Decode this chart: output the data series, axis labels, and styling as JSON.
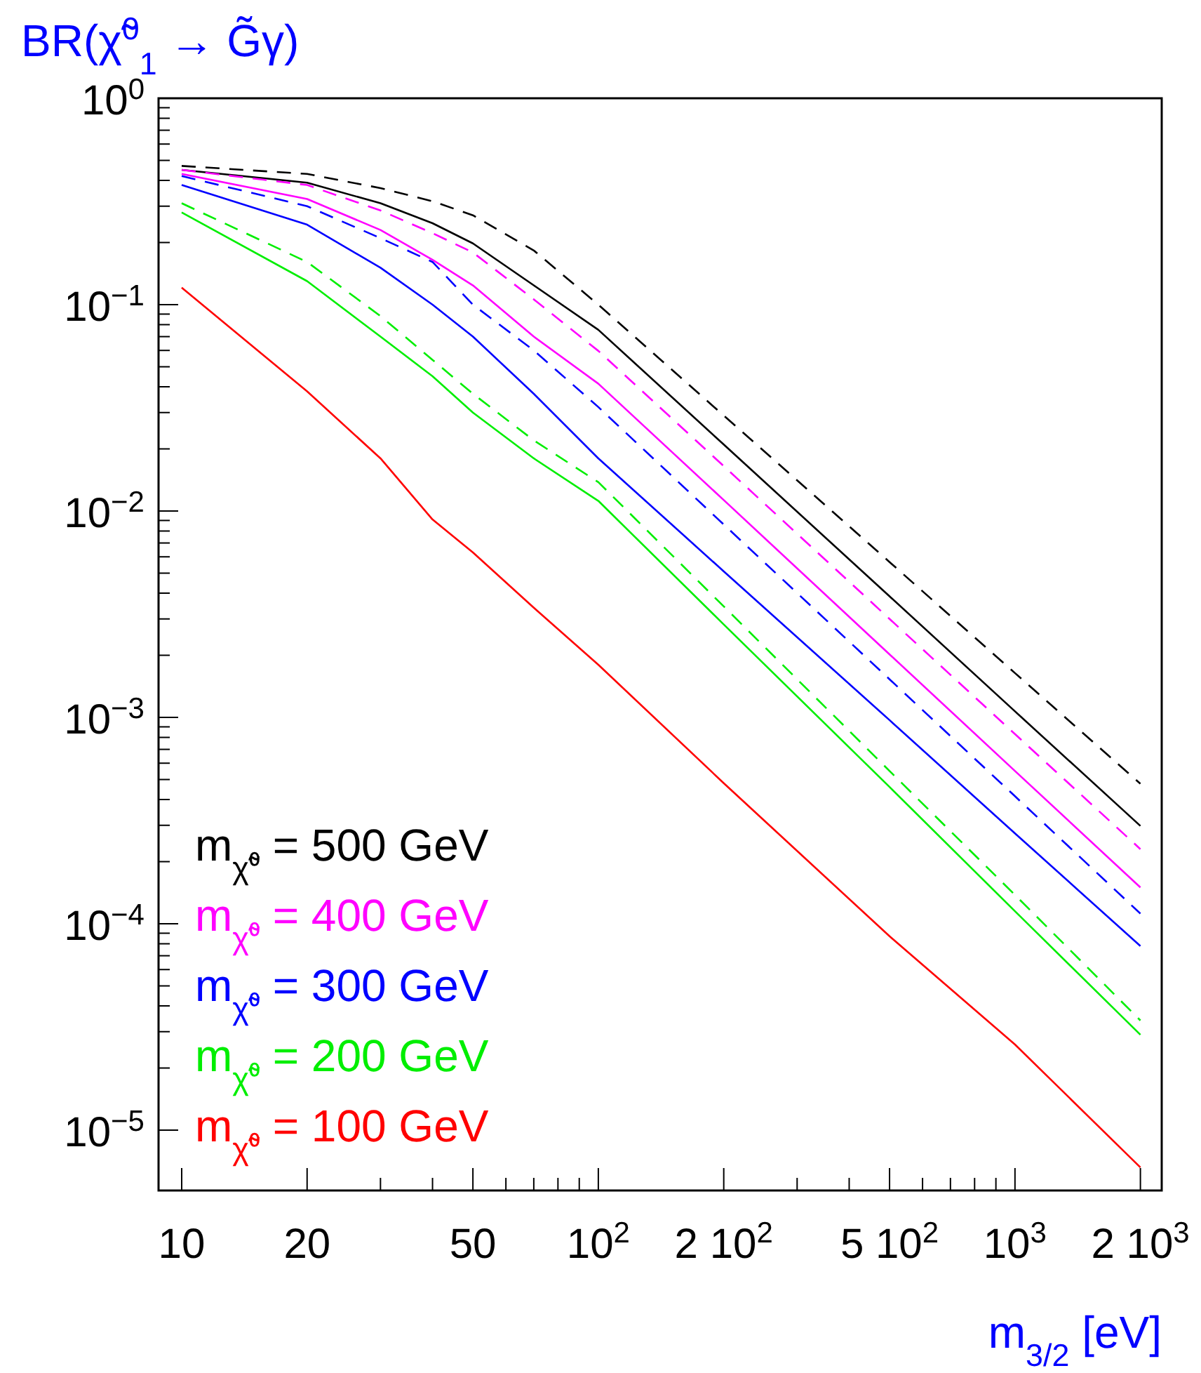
{
  "chart_data": {
    "type": "line",
    "title": "BR(χ̃$^{0}$$_{1}$ → G̃γ)",
    "xlabel": "m$_{3/2}$ [eV]",
    "log": "xy",
    "grid": false,
    "legend": "bottom left",
    "marker": "none",
    "x": [
      10,
      20,
      30,
      40,
      50,
      70,
      100,
      200,
      500,
      1000,
      2000
    ],
    "xlim": [
      8.8,
      2250
    ],
    "ylim": [
      5.1e-06,
      1
    ],
    "xticks": [
      10,
      20,
      {
        "value": 30,
        "label": null
      },
      {
        "value": 40,
        "label": null
      },
      50,
      {
        "value": 60,
        "label": null
      },
      {
        "value": 70,
        "label": null
      },
      {
        "value": 80,
        "label": null
      },
      {
        "value": 90,
        "label": null
      },
      {
        "value": 100,
        "label": "10$^{2}$"
      },
      {
        "value": 200,
        "label": "2 10$^{2}$"
      },
      {
        "value": 300,
        "label": null
      },
      {
        "value": 400,
        "label": null
      },
      {
        "value": 500,
        "label": "5 10$^{2}$"
      },
      {
        "value": 600,
        "label": null
      },
      {
        "value": 700,
        "label": null
      },
      {
        "value": 800,
        "label": null
      },
      {
        "value": 900,
        "label": null
      },
      {
        "value": 1000,
        "label": "10$^{3}$"
      },
      {
        "value": 2000,
        "label": "2 10$^{3}$"
      }
    ],
    "yticks": [
      {
        "value": 1,
        "label": "10$^{0}$"
      },
      {
        "value": 0.1,
        "label": "10$^{−1}$"
      },
      {
        "value": 0.01,
        "label": "10$^{−2}$"
      },
      {
        "value": 0.001,
        "label": "10$^{−3}$"
      },
      {
        "value": 0.0001,
        "label": "10$^{−4}$"
      },
      {
        "value": 1e-05,
        "label": "10$^{−5}$"
      },
      {
        "value": 0.2,
        "label": null
      },
      {
        "value": 0.3,
        "label": null
      },
      {
        "value": 0.4,
        "label": null
      },
      {
        "value": 0.5,
        "label": null
      },
      {
        "value": 0.6,
        "label": null
      },
      {
        "value": 0.7,
        "label": null
      },
      {
        "value": 0.8,
        "label": null
      },
      {
        "value": 0.9,
        "label": null
      },
      {
        "value": 0.02,
        "label": null
      },
      {
        "value": 0.03,
        "label": null
      },
      {
        "value": 0.04,
        "label": null
      },
      {
        "value": 0.05,
        "label": null
      },
      {
        "value": 0.06,
        "label": null
      },
      {
        "value": 0.07,
        "label": null
      },
      {
        "value": 0.08,
        "label": null
      },
      {
        "value": 0.09,
        "label": null
      },
      {
        "value": 0.002,
        "label": null
      },
      {
        "value": 0.003,
        "label": null
      },
      {
        "value": 0.004,
        "label": null
      },
      {
        "value": 0.005,
        "label": null
      },
      {
        "value": 0.006,
        "label": null
      },
      {
        "value": 0.007,
        "label": null
      },
      {
        "value": 0.008,
        "label": null
      },
      {
        "value": 0.009,
        "label": null
      },
      {
        "value": 0.0002,
        "label": null
      },
      {
        "value": 0.0003,
        "label": null
      },
      {
        "value": 0.0004,
        "label": null
      },
      {
        "value": 0.0005,
        "label": null
      },
      {
        "value": 0.0006,
        "label": null
      },
      {
        "value": 0.0007,
        "label": null
      },
      {
        "value": 0.0008,
        "label": null
      },
      {
        "value": 0.0009,
        "label": null
      },
      {
        "value": 2e-05,
        "label": null
      },
      {
        "value": 3e-05,
        "label": null
      },
      {
        "value": 4e-05,
        "label": null
      },
      {
        "value": 5e-05,
        "label": null
      },
      {
        "value": 6e-05,
        "label": null
      },
      {
        "value": 7e-05,
        "label": null
      },
      {
        "value": 8e-05,
        "label": null
      },
      {
        "value": 9e-05,
        "label": null
      }
    ],
    "series": [
      {
        "name": "m$_{χ̃⁰}$ = 500 GeV",
        "color": "#000000",
        "line_style": "solid",
        "values": [
          0.45,
          0.39,
          0.31,
          0.248,
          0.198,
          0.124,
          0.0755,
          0.021,
          0.00386,
          0.00107,
          0.000298
        ]
      },
      {
        "name": "m$_{χ̃⁰}$ = 400 GeV",
        "color": "#ff00ff",
        "line_style": "solid",
        "values": [
          0.43,
          0.325,
          0.23,
          0.165,
          0.124,
          0.07,
          0.0414,
          0.0113,
          0.00202,
          0.00055,
          0.00015
        ]
      },
      {
        "name": "m$_{χ̃⁰}$ = 300 GeV",
        "color": "#0000ff",
        "line_style": "solid",
        "values": [
          0.38,
          0.244,
          0.151,
          0.1,
          0.07,
          0.037,
          0.018,
          0.0051,
          0.00097,
          0.000274,
          7.8e-05
        ]
      },
      {
        "name": "m$_{χ̃⁰}$ = 200 GeV",
        "color": "#00ee00",
        "line_style": "solid",
        "values": [
          0.28,
          0.13,
          0.07,
          0.045,
          0.03,
          0.018,
          0.0112,
          0.00282,
          0.00046,
          0.000115,
          2.9e-05
        ]
      },
      {
        "name": "m$_{χ̃⁰}$ = 100 GeV",
        "color": "#ff0000",
        "line_style": "solid",
        "values": [
          0.121,
          0.038,
          0.018,
          0.0091,
          0.0063,
          0.0034,
          0.0018,
          0.00048,
          8.7e-05,
          2.6e-05,
          6.6e-06
        ]
      },
      {
        "color": "#000000",
        "line_style": "dashed",
        "values": [
          0.47,
          0.43,
          0.367,
          0.317,
          0.271,
          0.183,
          0.1,
          0.029,
          0.00566,
          0.00164,
          0.000477
        ]
      },
      {
        "color": "#ff00ff",
        "line_style": "dashed",
        "values": [
          0.45,
          0.38,
          0.286,
          0.222,
          0.179,
          0.106,
          0.0597,
          0.0165,
          0.003,
          0.00083,
          0.00023
        ]
      },
      {
        "color": "#0000ff",
        "line_style": "dashed",
        "values": [
          0.42,
          0.3,
          0.21,
          0.161,
          0.1,
          0.06,
          0.0319,
          0.0086,
          0.00153,
          0.000415,
          0.000112
        ]
      },
      {
        "color": "#00ee00",
        "line_style": "dashed",
        "values": [
          0.31,
          0.161,
          0.088,
          0.054,
          0.037,
          0.022,
          0.0138,
          0.00345,
          0.00055,
          0.000138,
          3.4e-05
        ]
      }
    ]
  }
}
